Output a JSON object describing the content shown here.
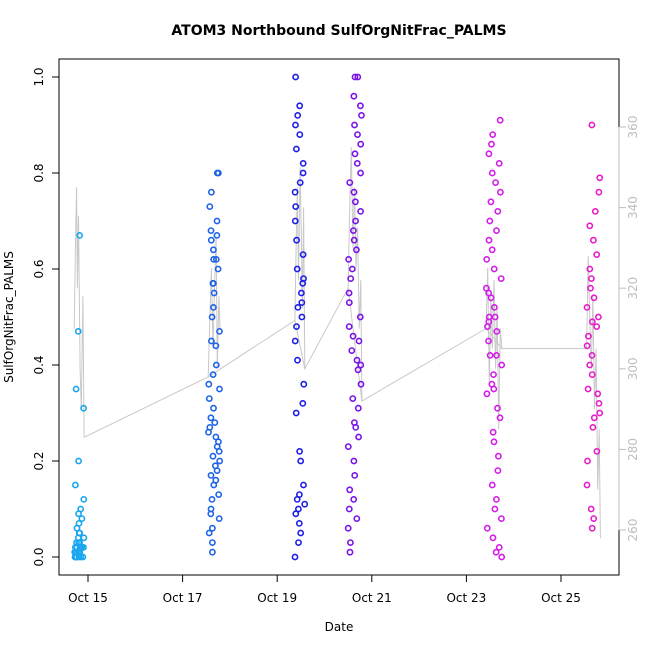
{
  "chart_data": {
    "type": "scatter",
    "title": "ATOM3 Northbound SulfOrgNitFrac_PALMS",
    "xlabel": "Date",
    "ylabel": "SulfOrgNitFrac_PALMS",
    "y2label": "",
    "xlim": [
      "2016-10-14",
      "2016-10-26"
    ],
    "ylim": [
      0,
      1
    ],
    "y2lim": [
      255,
      365
    ],
    "x_ticks": [
      "Oct 15",
      "Oct 17",
      "Oct 19",
      "Oct 21",
      "Oct 23",
      "Oct 25"
    ],
    "y_ticks": [
      "0.0",
      "0.2",
      "0.4",
      "0.6",
      "0.8",
      "1.0"
    ],
    "y2_ticks": [
      "260",
      "280",
      "300",
      "320",
      "340",
      "360"
    ],
    "grid": false,
    "legend": "none",
    "marker": "open-circle",
    "line_color": "#c8c8c8",
    "series": [
      {
        "flight": 1,
        "color": "#1aa6ee",
        "x_range": [
          "2016-10-14T17:00",
          "2016-10-14T22:00"
        ],
        "points_y": [
          0.0,
          0.01,
          0.02,
          0.0,
          0.03,
          0.05,
          0.01,
          0.0,
          0.02,
          0.04,
          0.06,
          0.08,
          0.1,
          0.0,
          0.01,
          0.03,
          0.02,
          0.0,
          0.05,
          0.07,
          0.0,
          0.01,
          0.02,
          0.12,
          0.15,
          0.2,
          0.31,
          0.35,
          0.47,
          0.67,
          0.0,
          0.02,
          0.01,
          0.04,
          0.09,
          0.0,
          0.03,
          0.01,
          0.0,
          0.02
        ],
        "line": [
          [
            17.0,
            310
          ],
          [
            17.6,
            330
          ],
          [
            18.2,
            345
          ],
          [
            18.6,
            320
          ],
          [
            19.2,
            338
          ],
          [
            20.0,
            300
          ],
          [
            20.6,
            290
          ],
          [
            21.4,
            318
          ],
          [
            22.0,
            283
          ]
        ]
      },
      {
        "flight": 2,
        "color": "#1e64e6",
        "x_range": [
          "2016-10-17T13:00",
          "2016-10-17T19:00"
        ],
        "points_y": [
          0.01,
          0.03,
          0.05,
          0.08,
          0.1,
          0.13,
          0.15,
          0.17,
          0.19,
          0.21,
          0.23,
          0.25,
          0.27,
          0.29,
          0.31,
          0.33,
          0.36,
          0.38,
          0.4,
          0.44,
          0.47,
          0.5,
          0.52,
          0.55,
          0.57,
          0.6,
          0.62,
          0.64,
          0.66,
          0.68,
          0.7,
          0.73,
          0.76,
          0.8,
          0.8,
          0.2,
          0.22,
          0.24,
          0.18,
          0.16,
          0.28,
          0.26,
          0.12,
          0.06,
          0.09,
          0.57,
          0.62,
          0.67,
          0.45,
          0.35
        ],
        "line": [
          [
            13.0,
            298
          ],
          [
            13.8,
            312
          ],
          [
            14.6,
            325
          ],
          [
            15.4,
            305
          ],
          [
            16.2,
            320
          ],
          [
            17.0,
            333
          ],
          [
            17.6,
            300
          ],
          [
            18.4,
            318
          ],
          [
            19.0,
            310
          ]
        ]
      },
      {
        "flight": 3,
        "color": "#1e1ee6",
        "x_range": [
          "2016-10-19T09:00",
          "2016-10-19T14:00"
        ],
        "points_y": [
          0.0,
          0.03,
          0.05,
          0.07,
          0.09,
          0.11,
          0.13,
          0.15,
          0.2,
          0.22,
          0.3,
          0.32,
          0.36,
          0.41,
          0.45,
          0.48,
          0.5,
          0.53,
          0.55,
          0.58,
          0.6,
          0.63,
          0.66,
          0.7,
          0.73,
          0.76,
          0.78,
          0.8,
          0.82,
          0.85,
          0.88,
          0.9,
          0.92,
          0.94,
          1.0,
          0.1,
          0.12,
          0.52,
          0.57
        ],
        "line": [
          [
            9.0,
            312
          ],
          [
            9.6,
            330
          ],
          [
            10.2,
            345
          ],
          [
            10.8,
            322
          ],
          [
            11.6,
            350
          ],
          [
            12.2,
            335
          ],
          [
            12.8,
            315
          ],
          [
            13.4,
            340
          ],
          [
            14.0,
            300
          ]
        ]
      },
      {
        "flight": 4,
        "color": "#7a14e6",
        "x_range": [
          "2016-10-20T12:00",
          "2016-10-20T19:00"
        ],
        "points_y": [
          0.01,
          0.03,
          0.06,
          0.08,
          0.1,
          0.12,
          0.14,
          0.17,
          0.2,
          0.23,
          0.25,
          0.28,
          0.31,
          0.33,
          0.36,
          0.39,
          0.41,
          0.43,
          0.46,
          0.48,
          0.5,
          0.53,
          0.55,
          0.58,
          0.6,
          0.62,
          0.64,
          0.66,
          0.68,
          0.7,
          0.72,
          0.74,
          0.76,
          0.78,
          0.8,
          0.82,
          0.84,
          0.86,
          0.88,
          0.9,
          0.92,
          0.94,
          0.96,
          1.0,
          1.0,
          0.45,
          0.4,
          0.27
        ],
        "line": [
          [
            12.0,
            320
          ],
          [
            12.8,
            340
          ],
          [
            13.6,
            355
          ],
          [
            14.4,
            330
          ],
          [
            15.2,
            345
          ],
          [
            16.0,
            325
          ],
          [
            16.8,
            335
          ],
          [
            17.6,
            310
          ],
          [
            18.4,
            322
          ],
          [
            19.0,
            292
          ]
        ]
      },
      {
        "flight": 5,
        "color": "#d21ee6",
        "x_range": [
          "2016-10-23T10:00",
          "2016-10-23T18:00"
        ],
        "points_y": [
          0.0,
          0.01,
          0.02,
          0.04,
          0.06,
          0.08,
          0.1,
          0.12,
          0.15,
          0.18,
          0.21,
          0.24,
          0.26,
          0.29,
          0.31,
          0.34,
          0.36,
          0.38,
          0.4,
          0.42,
          0.45,
          0.47,
          0.49,
          0.5,
          0.52,
          0.54,
          0.56,
          0.58,
          0.6,
          0.62,
          0.64,
          0.66,
          0.68,
          0.7,
          0.72,
          0.74,
          0.76,
          0.78,
          0.8,
          0.82,
          0.84,
          0.86,
          0.88,
          0.91,
          0.5,
          0.48,
          0.55,
          0.35,
          0.42
        ],
        "line": [
          [
            10.0,
            310
          ],
          [
            10.8,
            325
          ],
          [
            11.6,
            296
          ],
          [
            12.4,
            318
          ],
          [
            13.2,
            305
          ],
          [
            14.0,
            322
          ],
          [
            14.8,
            300
          ],
          [
            15.6,
            315
          ],
          [
            16.4,
            285
          ],
          [
            17.2,
            310
          ],
          [
            18.0,
            305
          ]
        ]
      },
      {
        "flight": 6,
        "color": "#e61ec8",
        "x_range": [
          "2016-10-25T13:00",
          "2016-10-25T20:00"
        ],
        "points_y": [
          0.06,
          0.08,
          0.1,
          0.15,
          0.2,
          0.22,
          0.27,
          0.29,
          0.32,
          0.35,
          0.38,
          0.4,
          0.42,
          0.44,
          0.46,
          0.48,
          0.5,
          0.52,
          0.54,
          0.56,
          0.58,
          0.6,
          0.63,
          0.66,
          0.69,
          0.72,
          0.76,
          0.79,
          0.9,
          0.3,
          0.34,
          0.49
        ],
        "line": [
          [
            13.0,
            305
          ],
          [
            13.8,
            328
          ],
          [
            14.6,
            312
          ],
          [
            15.4,
            300
          ],
          [
            16.2,
            318
          ],
          [
            17.0,
            290
          ],
          [
            17.8,
            305
          ],
          [
            18.6,
            270
          ],
          [
            19.4,
            285
          ],
          [
            20.0,
            258
          ]
        ]
      }
    ],
    "connector_line": [
      [
        "2016-10-14T22:00",
        283
      ],
      [
        "2016-10-17T13:00",
        298
      ],
      [
        "2016-10-19T09:00",
        312
      ],
      [
        "2016-10-19T14:00",
        300
      ],
      [
        "2016-10-20T12:00",
        320
      ],
      [
        "2016-10-20T19:00",
        292
      ],
      [
        "2016-10-23T10:00",
        310
      ],
      [
        "2016-10-23T18:00",
        305
      ],
      [
        "2016-10-25T13:00",
        305
      ]
    ]
  }
}
